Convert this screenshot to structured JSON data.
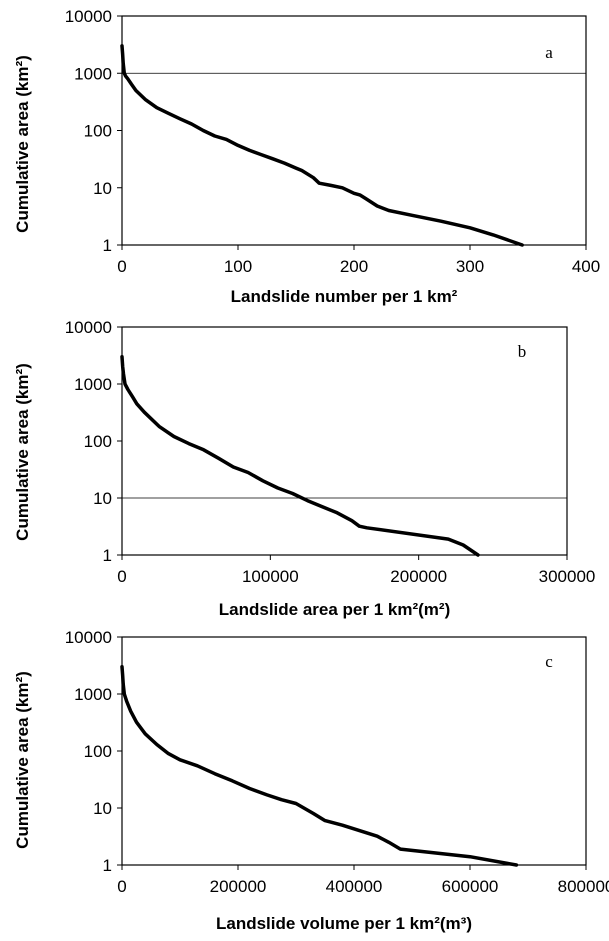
{
  "chart_data": [
    {
      "type": "line",
      "panel_label": "a",
      "xlabel": "Landslide number per 1 km²",
      "ylabel": "Cumulative area (km²)",
      "xlim": [
        0,
        400
      ],
      "ylim": [
        1,
        10000
      ],
      "yscale": "log",
      "xticks": [
        "0",
        "100",
        "200",
        "300",
        "400"
      ],
      "yticks": [
        "1",
        "10",
        "100",
        "1000",
        "10000"
      ],
      "gridlines_y": [
        1000
      ],
      "series": [
        {
          "x": [
            0,
            0.5,
            1,
            2,
            3,
            5,
            8,
            12,
            20,
            30,
            40,
            50,
            60,
            70,
            80,
            90,
            100,
            110,
            120,
            130,
            140,
            150,
            155,
            165,
            170,
            180,
            190,
            200,
            205,
            210,
            220,
            230,
            250,
            275,
            300,
            320,
            345
          ],
          "y": [
            3000,
            2200,
            1500,
            1000,
            900,
            800,
            650,
            500,
            350,
            250,
            200,
            160,
            130,
            100,
            80,
            70,
            55,
            45,
            38,
            32,
            27,
            22,
            20,
            15,
            12,
            11,
            10,
            8,
            7.5,
            6.5,
            4.8,
            4,
            3.3,
            2.6,
            2,
            1.5,
            1
          ]
        }
      ]
    },
    {
      "type": "line",
      "panel_label": "b",
      "xlabel": "Landslide area per 1 km²(m²)",
      "ylabel": "Cumulative area (km²)",
      "xlim": [
        0,
        300000
      ],
      "ylim": [
        1,
        10000
      ],
      "yscale": "log",
      "xticks": [
        "0",
        "100000",
        "200000",
        "300000"
      ],
      "yticks": [
        "1",
        "10",
        "100",
        "1000",
        "10000"
      ],
      "gridlines_y": [
        10
      ],
      "series": [
        {
          "x": [
            0,
            500,
            1000,
            2000,
            4000,
            7000,
            10000,
            15000,
            25000,
            35000,
            45000,
            55000,
            65000,
            75000,
            85000,
            95000,
            105000,
            115000,
            125000,
            135000,
            145000,
            155000,
            160000,
            165000,
            220000,
            230000,
            240000
          ],
          "y": [
            3000,
            2000,
            1500,
            1000,
            800,
            600,
            450,
            320,
            180,
            120,
            90,
            70,
            50,
            35,
            28,
            20,
            15,
            12,
            9,
            7,
            5.5,
            4,
            3.2,
            3,
            1.9,
            1.5,
            1
          ]
        }
      ]
    },
    {
      "type": "line",
      "panel_label": "c",
      "xlabel": "Landslide volume per 1 km²(m³)",
      "ylabel": "Cumulative area (km²)",
      "xlim": [
        0,
        800000
      ],
      "ylim": [
        1,
        10000
      ],
      "yscale": "log",
      "xticks": [
        "0",
        "200000",
        "400000",
        "600000",
        "800000"
      ],
      "yticks": [
        "1",
        "10",
        "100",
        "1000",
        "10000"
      ],
      "gridlines_y": [],
      "series": [
        {
          "x": [
            0,
            1000,
            2000,
            4000,
            8000,
            15000,
            25000,
            40000,
            60000,
            80000,
            100000,
            130000,
            160000,
            190000,
            220000,
            250000,
            275000,
            300000,
            330000,
            350000,
            380000,
            410000,
            440000,
            460000,
            480000,
            600000,
            680000
          ],
          "y": [
            3000,
            2200,
            1500,
            1000,
            750,
            500,
            320,
            200,
            130,
            90,
            70,
            55,
            40,
            30,
            22,
            17,
            14,
            12,
            8,
            6,
            5,
            4,
            3.2,
            2.5,
            1.9,
            1.4,
            1
          ]
        }
      ]
    }
  ]
}
